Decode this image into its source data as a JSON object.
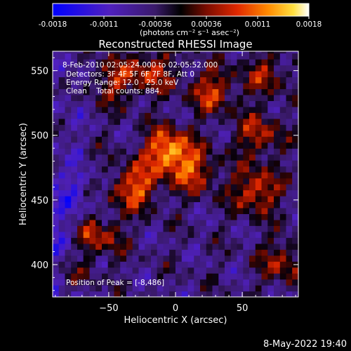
{
  "colorbar": {
    "ticks": [
      "-0.0018",
      "-0.0011",
      "-0.00036",
      "0.00036",
      "0.0011",
      "0.0018"
    ],
    "unit_label": "(photons cm⁻² s⁻¹ asec⁻²)",
    "colormap": [
      "#0000ff",
      "#5020c0",
      "#3a1a6a",
      "#000000",
      "#7a0c00",
      "#e02800",
      "#ff8a00",
      "#ffe040",
      "#ffffff"
    ]
  },
  "chart_data": {
    "type": "heatmap",
    "title": "Reconstructed RHESSI Image",
    "xlabel": "Heliocentric X (arcsec)",
    "ylabel": "Heliocentric Y (arcsec)",
    "xlim": [
      -92,
      92
    ],
    "ylim": [
      375,
      565
    ],
    "xticks": [
      -50,
      0,
      50
    ],
    "yticks": [
      400,
      450,
      500,
      550
    ],
    "xtick_labels": [
      "−50",
      "0",
      "50"
    ],
    "ytick_labels": [
      "400",
      "450",
      "500",
      "550"
    ],
    "zlim": [
      -0.0018,
      0.0018
    ],
    "peak": [
      -8,
      486
    ],
    "bright_regions": [
      {
        "x": -8,
        "y": 486,
        "value": 0.0018
      },
      {
        "x": -33,
        "y": 458,
        "value": 0.0014
      },
      {
        "x": -62,
        "y": 420,
        "value": 0.0013
      },
      {
        "x": 58,
        "y": 455,
        "value": 0.0013
      },
      {
        "x": 25,
        "y": 532,
        "value": 0.0011
      },
      {
        "x": 12,
        "y": 470,
        "value": 0.0011
      },
      {
        "x": 60,
        "y": 498,
        "value": 0.001
      },
      {
        "x": -20,
        "y": 548,
        "value": 0.001
      },
      {
        "x": -48,
        "y": 540,
        "value": 0.0009
      },
      {
        "x": 78,
        "y": 400,
        "value": 0.0009
      },
      {
        "x": 65,
        "y": 545,
        "value": 0.0008
      },
      {
        "x": -75,
        "y": 388,
        "value": 0.0008
      }
    ]
  },
  "annotations": {
    "time_range": "8-Feb-2010 02:05:24.000 to 02:05:52.000",
    "detectors": "Detectors: 3F 4F 5F 6F 7F 8F, Att 0",
    "energy": "Energy Range: 12.0 - 25.0 keV",
    "clean": "Clean    Total counts: 884.",
    "peak_label": "Position of Peak = [-8,486]"
  },
  "footer": {
    "date": "8-May-2022 19:40"
  }
}
